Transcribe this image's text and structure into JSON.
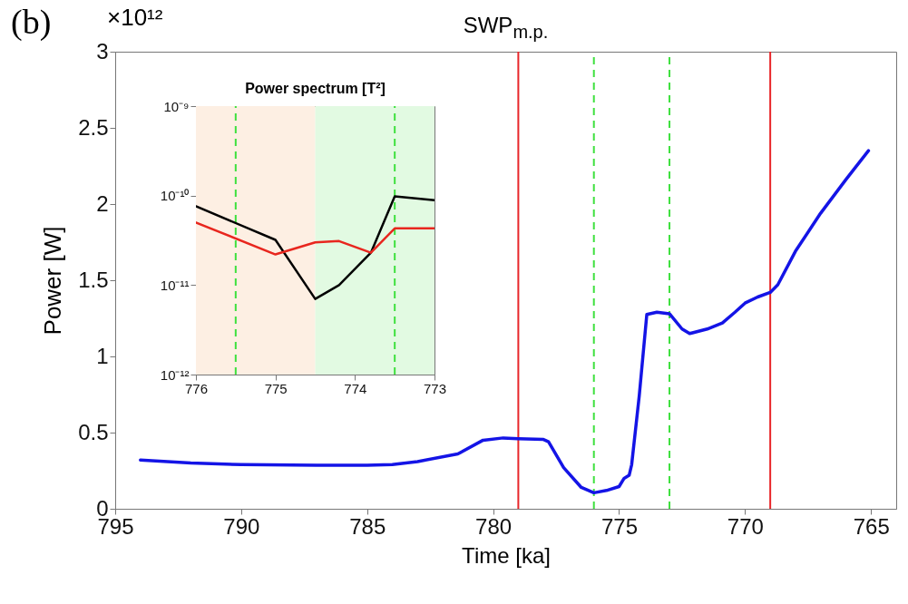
{
  "chart_data": [
    {
      "type": "line",
      "title": "SWP$_{m.p.}$",
      "xlabel": "Time [ka]",
      "ylabel": "Power [W]",
      "annotations": [
        "(b)",
        "×10¹²"
      ],
      "x": [
        794,
        792,
        790,
        787,
        785,
        784,
        783,
        781.4,
        780.4,
        779.6,
        779,
        778,
        777.8,
        777.2,
        776.5,
        776,
        775.5,
        775,
        774.8,
        774.6,
        774.5,
        774.2,
        773.9,
        773.5,
        773,
        772.5,
        772.2,
        771.5,
        770.9,
        770.4,
        770,
        769.5,
        769,
        768.7,
        768,
        767,
        766,
        765.1
      ],
      "series": [
        {
          "color": "#1414e6",
          "values": [
            0.32,
            0.3,
            0.29,
            0.285,
            0.285,
            0.29,
            0.31,
            0.36,
            0.45,
            0.465,
            0.46,
            0.455,
            0.44,
            0.27,
            0.14,
            0.105,
            0.12,
            0.146,
            0.2,
            0.22,
            0.29,
            0.74,
            1.275,
            1.29,
            1.28,
            1.18,
            1.15,
            1.18,
            1.22,
            1.29,
            1.35,
            1.39,
            1.42,
            1.47,
            1.69,
            1.94,
            2.16,
            2.35
          ]
        }
      ],
      "xlim": [
        795,
        764
      ],
      "xticks": [
        795,
        790,
        785,
        780,
        775,
        770,
        765
      ],
      "ylim": [
        0,
        3
      ],
      "yticks": [
        0,
        0.5,
        1,
        1.5,
        2,
        2.5,
        3
      ],
      "ref_lines": [
        {
          "axis": "x",
          "value": 779,
          "color": "#e8262a",
          "line_style": "solid"
        },
        {
          "axis": "x",
          "value": 776,
          "color": "#3ee03e",
          "line_style": "dashed"
        },
        {
          "axis": "x",
          "value": 773,
          "color": "#3ee03e",
          "line_style": "dashed"
        },
        {
          "axis": "x",
          "value": 769,
          "color": "#e8262a",
          "line_style": "solid"
        }
      ]
    },
    {
      "type": "line",
      "title": "Power spectrum [T²]",
      "x": [
        776,
        775,
        774.5,
        774.2,
        773.8,
        773.5,
        773
      ],
      "series": [
        {
          "color": "#000000",
          "values": [
            7.6e-11,
            3.2e-11,
            7e-12,
            1e-11,
            2.3e-11,
            9.8e-11,
            8.9e-11
          ]
        },
        {
          "color": "#e8261e",
          "values": [
            5e-11,
            2.2e-11,
            3e-11,
            3.1e-11,
            2.3e-11,
            4.3e-11,
            4.3e-11
          ]
        }
      ],
      "log": "y",
      "xlim": [
        776,
        773
      ],
      "xticks": [
        776,
        775,
        774,
        773
      ],
      "ylim": [
        1e-12,
        1e-09
      ],
      "yticks": [
        {
          "value": 1e-12,
          "label": "10⁻¹²"
        },
        {
          "value": 1e-11,
          "label": "10⁻¹¹"
        },
        {
          "value": 1e-10,
          "label": "10⁻¹⁰"
        },
        {
          "value": 1e-09,
          "label": "10⁻⁹"
        }
      ],
      "bands": [
        {
          "axis": "x",
          "from": 776,
          "to": 774.5,
          "color": "#fdefe3"
        },
        {
          "axis": "x",
          "from": 774.5,
          "to": 773,
          "color": "#e2fae2"
        }
      ],
      "ref_lines": [
        {
          "axis": "x",
          "value": 775.5,
          "color": "#3ee03e",
          "line_style": "dashed"
        },
        {
          "axis": "x",
          "value": 773.5,
          "color": "#3ee03e",
          "line_style": "dashed"
        }
      ]
    }
  ]
}
